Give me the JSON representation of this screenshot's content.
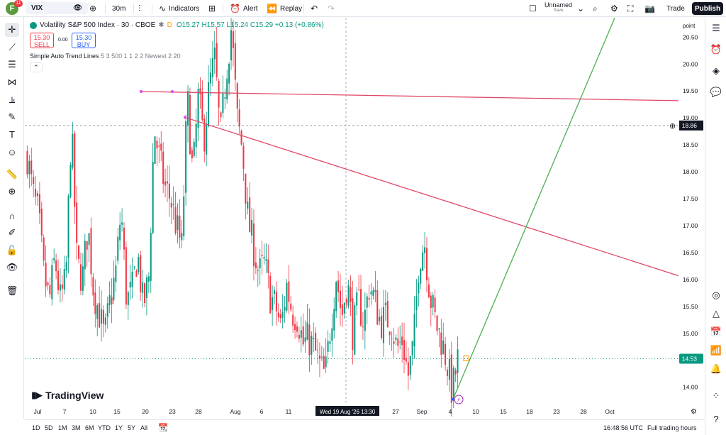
{
  "topbar": {
    "avatar_letter": "F",
    "notifications": "11",
    "symbol": "VIX",
    "interval": "30m",
    "indicators_label": "Indicators",
    "alert_label": "Alert",
    "replay_label": "Replay",
    "layout_name": "Unnamed",
    "layout_status": "Save",
    "trade_label": "Trade",
    "publish_label": "Publish"
  },
  "legend": {
    "title": "Volatility S&P 500 Index · 30 · CBOE",
    "o": "O15.27",
    "h": "H15.57",
    "l": "L15.24",
    "c": "C15.29",
    "chg": "+0.13 (+0.86%)",
    "sell_price": "15.30",
    "sell_label": "SELL",
    "spread": "0.00",
    "buy_price": "15.30",
    "buy_label": "BUY",
    "indicator_name": "Simple Auto Trend Lines",
    "indicator_params": "5 3 500 1 1 2 2 Newest 2 20"
  },
  "price_axis": {
    "unit_label": "point",
    "ticks": [
      "20.50",
      "20.00",
      "19.50",
      "19.00",
      "18.50",
      "18.00",
      "17.50",
      "17.00",
      "16.50",
      "16.00",
      "15.50",
      "15.00",
      "14.50",
      "14.00"
    ],
    "crosshair_price": "18.86",
    "last_price": "14.53"
  },
  "time_axis": {
    "ticks": [
      "Jul",
      "7",
      "10",
      "15",
      "20",
      "23",
      "28",
      "Aug",
      "6",
      "11",
      "27",
      "Sep",
      "4",
      "10",
      "15",
      "18",
      "23",
      "28",
      "Oct"
    ],
    "crosshair_label": "Wed 19 Aug '26   13:30"
  },
  "bottombar": {
    "ranges": [
      "1D",
      "5D",
      "1M",
      "3M",
      "6M",
      "YTD",
      "1Y",
      "5Y",
      "All"
    ],
    "clock": "16:48:56 UTC",
    "session": "Full trading hours"
  },
  "logo_text": "TradingView",
  "colors": {
    "up": "#089981",
    "down": "#f23645",
    "trendline": "#e04868",
    "projection": "#4caf50",
    "handle": "#e040fb"
  },
  "chart_data": {
    "type": "candlestick",
    "ylim": [
      13.72,
      20.86
    ],
    "ylabel": "point",
    "price_path": [
      18.3,
      17.6,
      17.2,
      16.1,
      15.6,
      16.4,
      15.6,
      16.0,
      18.9,
      16.3,
      16.0,
      17.0,
      15.8,
      15.4,
      14.9,
      15.6,
      16.1,
      17.3,
      15.6,
      15.8,
      16.5,
      15.5,
      16.0,
      18.8,
      18.2,
      17.7,
      17.5,
      17.0,
      16.6,
      19.4,
      17.9,
      19.4,
      18.6,
      19.6,
      20.1,
      18.6,
      19.8,
      20.7,
      19.0,
      18.4,
      17.1,
      16.6,
      16.1,
      16.3,
      15.7,
      15.5,
      15.1,
      15.9,
      15.4,
      15.3,
      14.8,
      14.9,
      14.7,
      14.4,
      14.2,
      15.2,
      16.1,
      15.3,
      16.0,
      15.0,
      15.6,
      15.2,
      15.9,
      15.6,
      15.2,
      15.3,
      15.2,
      14.7,
      14.9,
      14.2,
      14.8,
      16.4,
      16.7,
      15.7,
      15.2,
      14.9,
      14.5,
      13.9,
      14.5
    ],
    "trend_lines": [
      {
        "from": [
          "Jul 18",
          19.49
        ],
        "to": [
          "Oct 3",
          19.32
        ]
      },
      {
        "from": [
          "Jul 25",
          19.01
        ],
        "to": [
          "Oct 3",
          16.07
        ]
      },
      {
        "from": [
          "Sep 4",
          13.78
        ],
        "to": [
          "Sep 28",
          20.98
        ]
      }
    ]
  }
}
